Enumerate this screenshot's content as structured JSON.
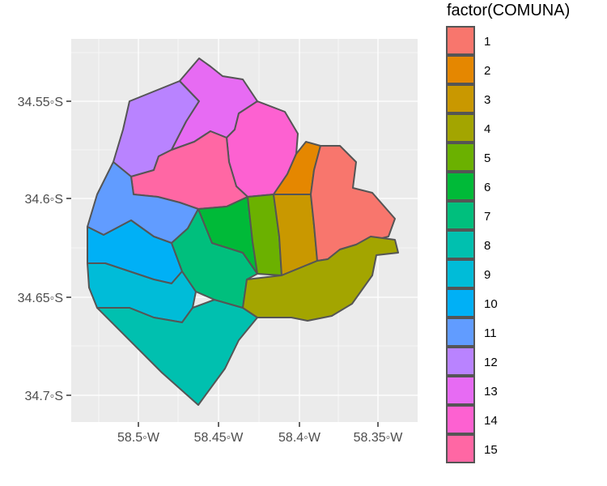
{
  "legend": {
    "title": "factor(COMUNA)"
  },
  "axes": {
    "x_ticks": [
      "58.5◦W",
      "58.45◦W",
      "58.4◦W",
      "58.35◦W"
    ],
    "y_ticks": [
      "34.55◦S",
      "34.6◦S",
      "34.65◦S",
      "34.7◦S"
    ]
  },
  "comunas": [
    {
      "id": "1",
      "color": "#F8766D"
    },
    {
      "id": "2",
      "color": "#E58700"
    },
    {
      "id": "3",
      "color": "#C99800"
    },
    {
      "id": "4",
      "color": "#A3A500"
    },
    {
      "id": "5",
      "color": "#6BB100"
    },
    {
      "id": "6",
      "color": "#00BA38"
    },
    {
      "id": "7",
      "color": "#00BF7D"
    },
    {
      "id": "8",
      "color": "#00C0AF"
    },
    {
      "id": "9",
      "color": "#00BCD8"
    },
    {
      "id": "10",
      "color": "#00B0F6"
    },
    {
      "id": "11",
      "color": "#619CFF"
    },
    {
      "id": "12",
      "color": "#B983FF"
    },
    {
      "id": "13",
      "color": "#E76BF3"
    },
    {
      "id": "14",
      "color": "#FD61D1"
    },
    {
      "id": "15",
      "color": "#FF67A4"
    }
  ]
}
